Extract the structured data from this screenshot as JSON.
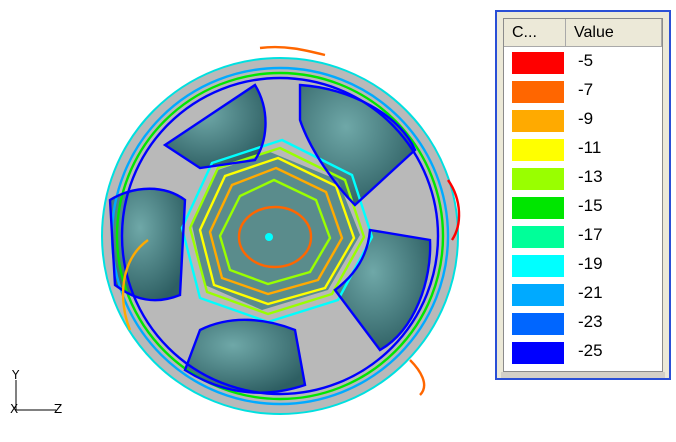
{
  "axis": {
    "vertical": "Y",
    "horizontal": "Z",
    "origin": "X"
  },
  "legend": {
    "headers": {
      "color": "C...",
      "value": "Value"
    },
    "rows": [
      {
        "color": "#ff0000",
        "value": "-5"
      },
      {
        "color": "#ff6600",
        "value": "-7"
      },
      {
        "color": "#ffaa00",
        "value": "-9"
      },
      {
        "color": "#ffff00",
        "value": "-11"
      },
      {
        "color": "#99ff00",
        "value": "-13"
      },
      {
        "color": "#00e600",
        "value": "-15"
      },
      {
        "color": "#00ff99",
        "value": "-17"
      },
      {
        "color": "#00ffff",
        "value": "-19"
      },
      {
        "color": "#00aaff",
        "value": "-21"
      },
      {
        "color": "#0066ff",
        "value": "-23"
      },
      {
        "color": "#0000ff",
        "value": "-25"
      }
    ]
  }
}
